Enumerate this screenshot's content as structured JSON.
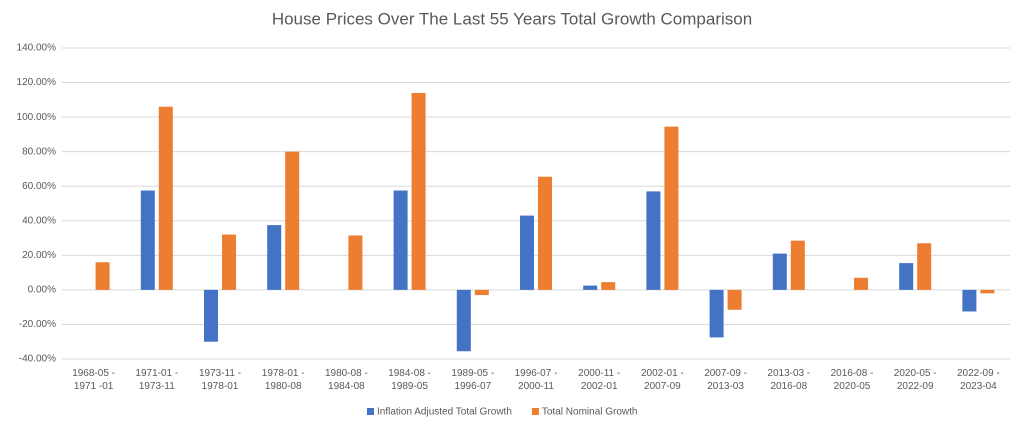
{
  "chart_data": {
    "type": "bar",
    "title": "House Prices Over The Last 55 Years Total Growth Comparison",
    "categories": [
      "1968-05 -\n1971 -01",
      "1971-01 -\n1973-11",
      "1973-11 -\n1978-01",
      "1978-01 -\n1980-08",
      "1980-08 -\n1984-08",
      "1984-08 -\n1989-05",
      "1989-05 -\n1996-07",
      "1996-07 -\n2000-11",
      "2000-11 -\n2002-01",
      "2002-01 -\n2007-09",
      "2007-09 -\n2013-03",
      "2013-03 -\n2016-08",
      "2016-08 -\n2020-05",
      "2020-05 -\n2022-09",
      "2022-09 -\n2023-04"
    ],
    "series": [
      {
        "name": "Inflation Adjusted Total Growth",
        "color": "#4472c4",
        "values": [
          0,
          57.5,
          -30,
          37.5,
          0,
          57.5,
          -35.5,
          43,
          2.5,
          57,
          -27.5,
          21,
          0,
          15.5,
          -12.5
        ]
      },
      {
        "name": "Total Nominal Growth",
        "color": "#ed7d31",
        "values": [
          16,
          106,
          32,
          80,
          31.5,
          114,
          -3,
          65.5,
          4.5,
          94.5,
          -11.5,
          28.5,
          7,
          27,
          -2
        ]
      }
    ],
    "ylim": [
      -40,
      140
    ],
    "yticks": [
      {
        "value": -40,
        "label": "-40.00%"
      },
      {
        "value": -20,
        "label": "-20.00%"
      },
      {
        "value": 0,
        "label": "0.00%"
      },
      {
        "value": 20,
        "label": "20.00%"
      },
      {
        "value": 40,
        "label": "40.00%"
      },
      {
        "value": 60,
        "label": "60.00%"
      },
      {
        "value": 80,
        "label": "80.00%"
      },
      {
        "value": 100,
        "label": "100.00%"
      },
      {
        "value": 120,
        "label": "120.00%"
      },
      {
        "value": 140,
        "label": "140.00%"
      }
    ],
    "grid": true,
    "legend": "bottom"
  }
}
